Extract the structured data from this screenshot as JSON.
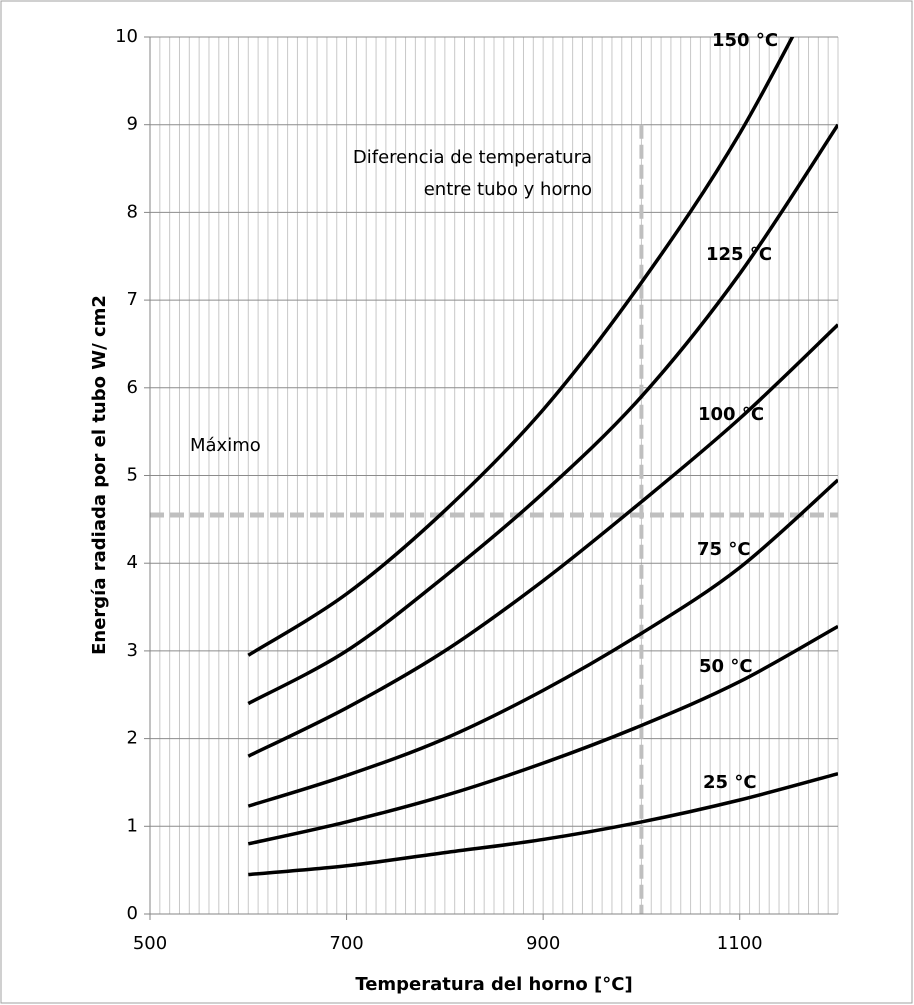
{
  "chart_data": {
    "type": "line",
    "xlabel": "Temperatura del horno [°C]",
    "ylabel": "Energía radiada por el tubo W/ cm2",
    "x": [
      600,
      700,
      800,
      900,
      1000,
      1100,
      1200
    ],
    "series": [
      {
        "name": "150 °C",
        "color": "#000000",
        "values": [
          2.95,
          3.65,
          4.6,
          5.75,
          7.2,
          8.9,
          11.0
        ]
      },
      {
        "name": "125 °C",
        "color": "#000000",
        "values": [
          2.4,
          3.0,
          3.85,
          4.8,
          5.9,
          7.3,
          9.0
        ]
      },
      {
        "name": "100 °C",
        "color": "#000000",
        "values": [
          1.8,
          2.35,
          3.0,
          3.8,
          4.7,
          5.65,
          6.72
        ]
      },
      {
        "name": "75 °C",
        "color": "#000000",
        "values": [
          1.23,
          1.58,
          2.0,
          2.55,
          3.2,
          3.95,
          4.95
        ]
      },
      {
        "name": "50 °C",
        "color": "#000000",
        "values": [
          0.8,
          1.05,
          1.35,
          1.72,
          2.15,
          2.65,
          3.28
        ]
      },
      {
        "name": "25 °C",
        "color": "#000000",
        "values": [
          0.45,
          0.55,
          0.7,
          0.85,
          1.05,
          1.3,
          1.6
        ]
      }
    ],
    "annotations": [
      "Diferencia de temperatura",
      "entre tubo y horno",
      "Máximo"
    ],
    "max_line": 4.55,
    "ref_vline": {
      "x": 1000,
      "ymax": 9
    },
    "ref_color": "#bfbfbf",
    "xlim": [
      500,
      1200
    ],
    "xticks": [
      500,
      700,
      900,
      1100
    ],
    "ylim": [
      0,
      10
    ],
    "yticks": [
      0,
      1,
      2,
      3,
      4,
      5,
      6,
      7,
      8,
      9,
      10
    ],
    "xminor_step": 10,
    "grid": true
  }
}
